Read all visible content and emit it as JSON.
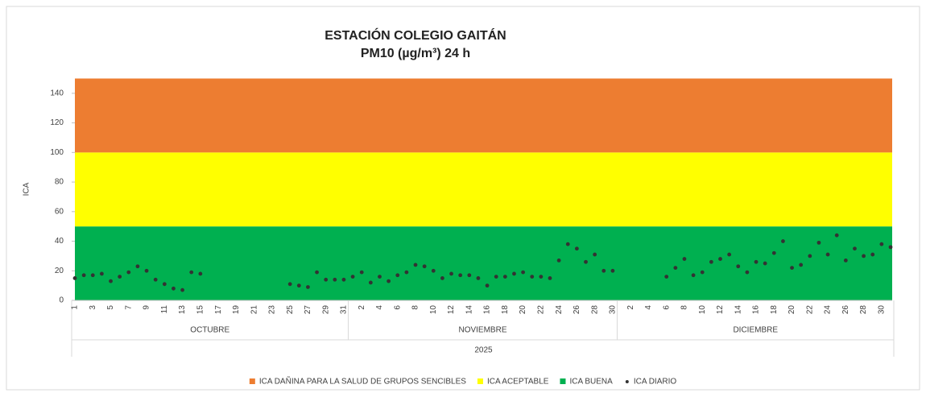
{
  "chart_data": {
    "type": "scatter",
    "title": "ESTACIÓN COLEGIO GAITÁN",
    "subtitle": "PM10 (µg/m³) 24 h",
    "y_label": "ICA",
    "ylim": [
      0,
      150
    ],
    "yticks": [
      0,
      20,
      40,
      60,
      80,
      100,
      120,
      140
    ],
    "year_label": "2025",
    "groups": [
      {
        "label": "OCTUBRE",
        "categories": [
          1,
          null,
          3,
          null,
          5,
          null,
          7,
          null,
          9,
          null,
          11,
          null,
          13,
          null,
          15,
          null,
          17,
          null,
          19,
          null,
          21,
          null,
          23,
          null,
          25,
          null,
          27,
          null,
          29,
          null,
          31
        ]
      },
      {
        "label": "NOVIEMBRE",
        "categories": [
          null,
          2,
          null,
          4,
          null,
          6,
          null,
          8,
          null,
          10,
          null,
          12,
          null,
          14,
          null,
          16,
          null,
          18,
          null,
          20,
          null,
          22,
          null,
          24,
          null,
          26,
          null,
          28,
          null,
          30
        ]
      },
      {
        "label": "DICIEMBRE",
        "categories": [
          null,
          2,
          null,
          4,
          null,
          6,
          null,
          8,
          null,
          10,
          null,
          12,
          null,
          14,
          null,
          16,
          null,
          18,
          null,
          20,
          null,
          22,
          null,
          24,
          null,
          26,
          null,
          28,
          null,
          30,
          null
        ]
      }
    ],
    "bands": [
      {
        "name": "ICA DAÑINA PARA LA SALUD DE GRUPOS SENCIBLES",
        "color": "#ed7d31",
        "value": 50
      },
      {
        "name": "ICA ACEPTABLE",
        "color": "#ffff00",
        "value": 50
      },
      {
        "name": "ICA BUENA",
        "color": "#00b050",
        "value": 50
      }
    ],
    "series": [
      {
        "name": "ICA DIARIO",
        "color": "#333333",
        "values": [
          15,
          17,
          17,
          18,
          13,
          16,
          19,
          23,
          20,
          14,
          11,
          8,
          7,
          19,
          18,
          null,
          null,
          null,
          null,
          null,
          null,
          null,
          null,
          null,
          11,
          10,
          9,
          19,
          14,
          14,
          14,
          16,
          19,
          12,
          16,
          13,
          17,
          19,
          24,
          23,
          20,
          15,
          18,
          17,
          17,
          15,
          10,
          16,
          16,
          18,
          19,
          16,
          16,
          15,
          27,
          38,
          35,
          26,
          31,
          20,
          20,
          null,
          null,
          null,
          null,
          null,
          16,
          22,
          28,
          17,
          19,
          26,
          28,
          31,
          23,
          19,
          26,
          25,
          32,
          40,
          22,
          24,
          30,
          39,
          31,
          44,
          27,
          35,
          30,
          31,
          38,
          36
        ]
      }
    ]
  }
}
